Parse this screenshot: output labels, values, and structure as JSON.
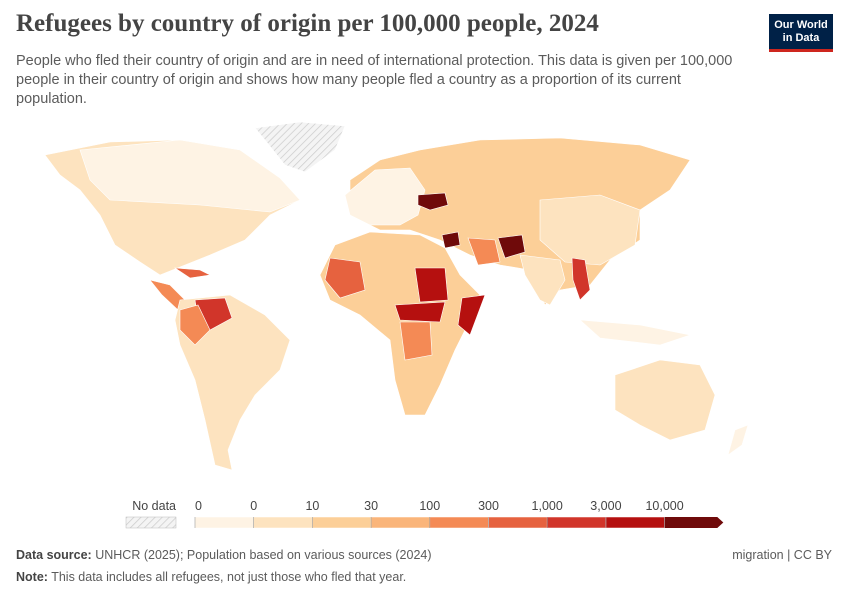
{
  "header": {
    "title": "Refugees by country of origin per 100,000 people, 2024",
    "subtitle": "People who fled their country of origin and are in need of international protection. This data is given per 100,000 people in their country of origin and shows how many people fled a country as a proportion of its current population.",
    "logo": [
      "Our World",
      "in Data"
    ]
  },
  "legend": {
    "no_data_label": "No data",
    "ticks": [
      0,
      0,
      10,
      30,
      100,
      300,
      {
        "value": 1000,
        "label": "1,000"
      },
      {
        "value": 3000,
        "label": "3,000"
      },
      {
        "value": 10000,
        "label": "10,000"
      }
    ],
    "colors": [
      "#fef3e4",
      "#fde3bf",
      "#fccf98",
      "#fab57a",
      "#f48a55",
      "#e6623f",
      "#d1352a",
      "#b5100f",
      "#6f0a0a"
    ]
  },
  "footer": {
    "source_label": "Data source:",
    "source": "UNHCR (2025); Population based on various sources (2024)",
    "note_label": "Note:",
    "note": "This data includes all refugees, not just those who fled that year.",
    "topic": "migration | CC BY"
  }
}
